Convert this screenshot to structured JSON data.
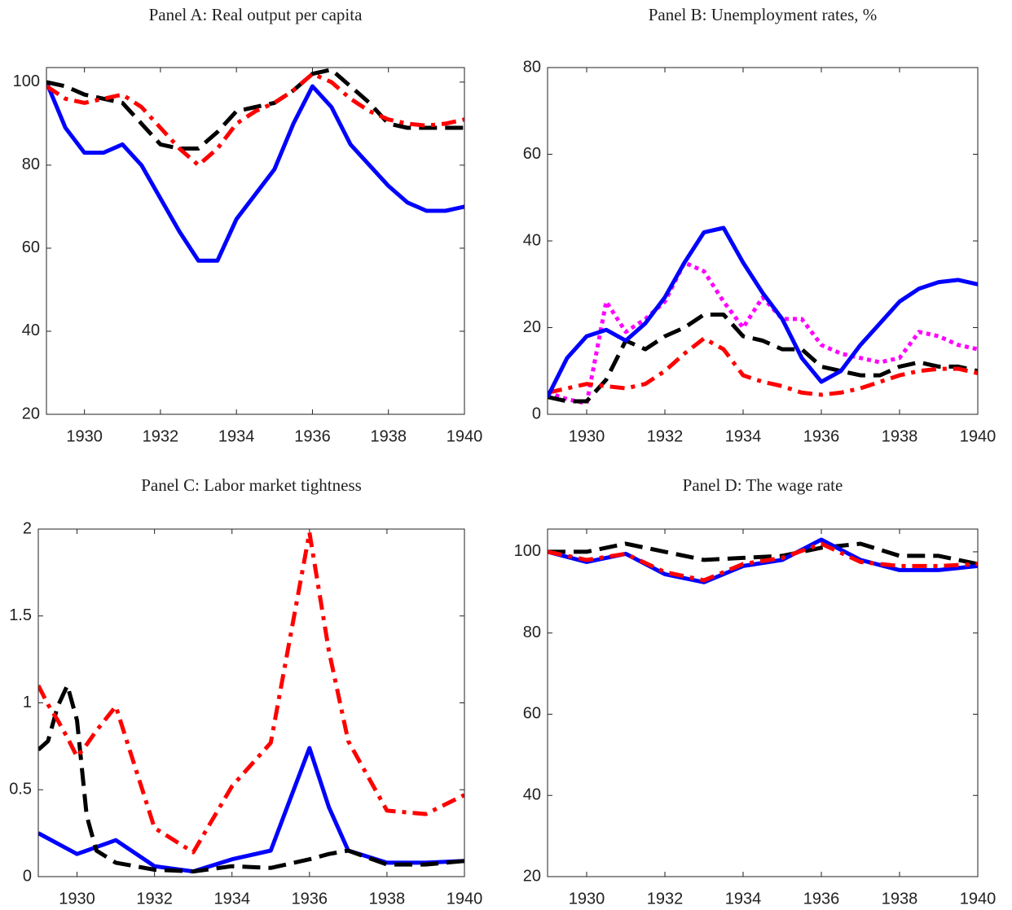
{
  "chart_data": [
    {
      "type": "line",
      "title": "Panel A: Real output per capita",
      "x": [
        1929,
        1929.5,
        1930,
        1930.5,
        1931,
        1931.5,
        1932,
        1932.5,
        1933,
        1933.5,
        1934,
        1934.5,
        1935,
        1935.5,
        1936,
        1936.5,
        1937,
        1937.5,
        1938,
        1938.5,
        1939,
        1939.5,
        1940
      ],
      "series": [
        {
          "color": "#0000ff",
          "style": "solid",
          "values": [
            100,
            89,
            83,
            83,
            85,
            80,
            72,
            64,
            57,
            57,
            67,
            73,
            79,
            90,
            99,
            94,
            85,
            80,
            75,
            71,
            69,
            69,
            70
          ]
        },
        {
          "color": "#000000",
          "style": "dashed",
          "values": [
            100,
            99,
            97,
            96,
            95,
            90,
            85,
            84,
            84,
            88,
            93,
            94,
            95,
            98,
            102,
            103,
            99,
            95,
            90,
            89,
            89,
            89,
            89
          ]
        },
        {
          "color": "#ff0000",
          "style": "dashdot",
          "values": [
            99,
            96,
            95,
            96,
            97,
            94,
            89,
            84,
            80,
            84,
            90,
            93,
            95,
            98,
            102,
            100,
            96,
            93,
            91,
            90,
            89.5,
            90,
            91
          ]
        }
      ],
      "xlim": [
        1929,
        1940
      ],
      "xticks": [
        1930,
        1932,
        1934,
        1936,
        1938,
        1940
      ],
      "ylim": [
        20,
        103.5
      ],
      "yticks": [
        20,
        40,
        60,
        80,
        100
      ]
    },
    {
      "type": "line",
      "title": "Panel B: Unemployment rates, %",
      "x": [
        1929,
        1929.5,
        1930,
        1930.5,
        1931,
        1931.5,
        1932,
        1932.5,
        1933,
        1933.5,
        1934,
        1934.5,
        1935,
        1935.5,
        1936,
        1936.5,
        1937,
        1937.5,
        1938,
        1938.5,
        1939,
        1939.5,
        1940
      ],
      "series": [
        {
          "color": "#ff00ff",
          "style": "dotted",
          "values": [
            5,
            3.5,
            2.5,
            26,
            19,
            22,
            26,
            35,
            33,
            26,
            20,
            27,
            22,
            22,
            16,
            14,
            13,
            12,
            13,
            19,
            18,
            16,
            15
          ]
        },
        {
          "color": "#000000",
          "style": "dashed",
          "values": [
            4,
            3,
            3,
            8,
            17,
            15,
            18,
            20,
            23,
            23,
            18,
            17,
            15,
            15,
            11,
            10,
            9,
            9,
            11,
            12,
            11,
            11,
            10
          ]
        },
        {
          "color": "#ff0000",
          "style": "dashdot",
          "values": [
            5,
            6,
            7,
            6.5,
            6,
            7,
            10,
            14,
            17.5,
            15,
            9,
            7.5,
            6.5,
            5,
            4.5,
            5,
            6,
            7.5,
            9,
            10,
            10.5,
            10.5,
            9.5
          ]
        },
        {
          "color": "#0000ff",
          "style": "solid",
          "values": [
            4,
            13,
            18,
            19.5,
            17,
            21,
            27,
            35,
            42,
            43,
            35,
            28,
            22,
            13,
            7.5,
            10,
            16,
            21,
            26,
            29,
            30.5,
            31,
            30
          ]
        }
      ],
      "xlim": [
        1929,
        1940
      ],
      "xticks": [
        1930,
        1932,
        1934,
        1936,
        1938,
        1940
      ],
      "ylim": [
        0,
        80
      ],
      "yticks": [
        0,
        20,
        40,
        60,
        80
      ]
    },
    {
      "type": "line",
      "title": "Panel C: Labor market tightness",
      "x": [
        1929,
        1929.25,
        1929.5,
        1929.75,
        1930,
        1930.25,
        1930.5,
        1931,
        1932,
        1933,
        1934,
        1935,
        1936,
        1936.5,
        1937,
        1938,
        1939,
        1940
      ],
      "series": [
        {
          "color": "#0000ff",
          "style": "solid",
          "values": [
            0.25,
            0.22,
            0.19,
            0.16,
            0.13,
            0.15,
            0.17,
            0.21,
            0.06,
            0.03,
            0.1,
            0.15,
            0.74,
            0.4,
            0.15,
            0.08,
            0.08,
            0.09
          ]
        },
        {
          "color": "#000000",
          "style": "dashed",
          "values": [
            0.73,
            0.78,
            0.98,
            1.1,
            0.9,
            0.35,
            0.15,
            0.08,
            0.04,
            0.03,
            0.06,
            0.05,
            0.1,
            0.13,
            0.15,
            0.07,
            0.07,
            0.09
          ]
        },
        {
          "color": "#ff0000",
          "style": "dashdot",
          "values": [
            1.1,
            0.99,
            0.9,
            0.8,
            0.69,
            0.76,
            0.84,
            0.98,
            0.28,
            0.14,
            0.52,
            0.77,
            1.98,
            1.3,
            0.78,
            0.38,
            0.36,
            0.47
          ]
        }
      ],
      "xlim": [
        1929,
        1940
      ],
      "xticks": [
        1930,
        1932,
        1934,
        1936,
        1938,
        1940
      ],
      "ylim": [
        0,
        2
      ],
      "yticks": [
        0,
        0.5,
        1,
        1.5,
        2
      ]
    },
    {
      "type": "line",
      "title": "Panel D: The wage rate",
      "x": [
        1929,
        1930,
        1931,
        1932,
        1933,
        1934,
        1935,
        1936,
        1937,
        1938,
        1939,
        1940
      ],
      "series": [
        {
          "color": "#000000",
          "style": "dashed",
          "values": [
            100,
            100,
            102,
            100,
            98,
            98.5,
            99,
            101,
            102,
            99,
            99,
            97
          ]
        },
        {
          "color": "#0000ff",
          "style": "solid",
          "values": [
            100,
            97.5,
            99.5,
            94.5,
            92.5,
            96.5,
            98,
            103,
            98,
            95.5,
            95.5,
            96.5
          ]
        },
        {
          "color": "#ff0000",
          "style": "dashdot",
          "values": [
            100,
            98,
            99.5,
            95,
            93,
            97,
            98.5,
            102,
            97.5,
            96.5,
            96.5,
            97
          ]
        }
      ],
      "xlim": [
        1929,
        1940
      ],
      "xticks": [
        1930,
        1932,
        1934,
        1936,
        1938,
        1940
      ],
      "ylim": [
        20,
        105.6
      ],
      "yticks": [
        20,
        40,
        60,
        80,
        100
      ]
    }
  ]
}
